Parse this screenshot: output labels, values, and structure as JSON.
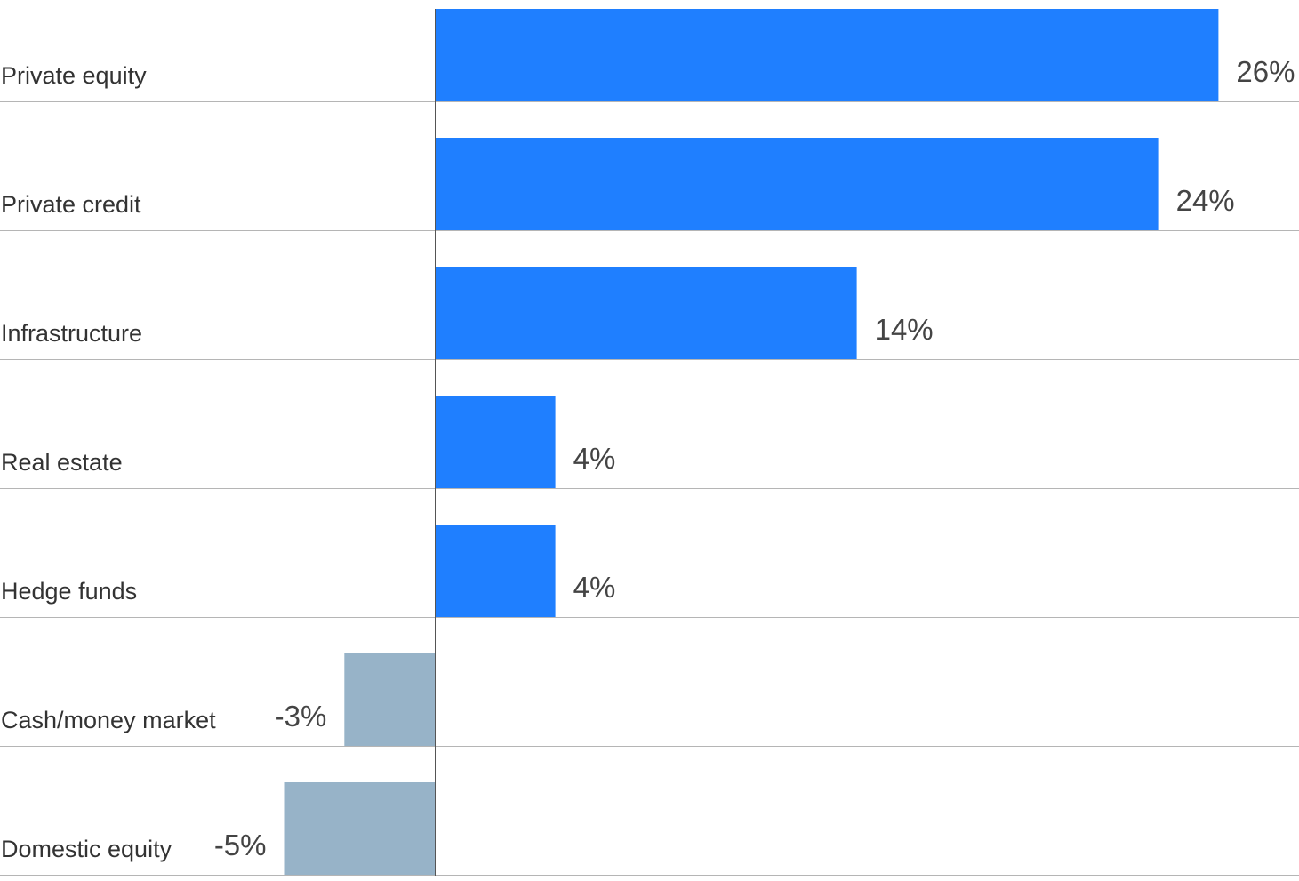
{
  "chart_data": {
    "type": "bar",
    "orientation": "horizontal",
    "title": "",
    "xlabel": "",
    "ylabel": "",
    "categories": [
      "Private equity",
      "Private credit",
      "Infrastructure",
      "Real estate",
      "Hedge funds",
      "Cash/money market",
      "Domestic equity"
    ],
    "values": [
      26,
      24,
      14,
      4,
      4,
      -3,
      -5
    ],
    "value_labels": [
      "26%",
      "24%",
      "14%",
      "4%",
      "4%",
      "-3%",
      "-5%"
    ],
    "unit": "%",
    "xlim": [
      -5,
      26
    ],
    "grid": false,
    "colors": {
      "positive": "#1f7fff",
      "negative": "#97b3c8",
      "separator": "#b5b5b5",
      "axis": "#555555"
    }
  }
}
